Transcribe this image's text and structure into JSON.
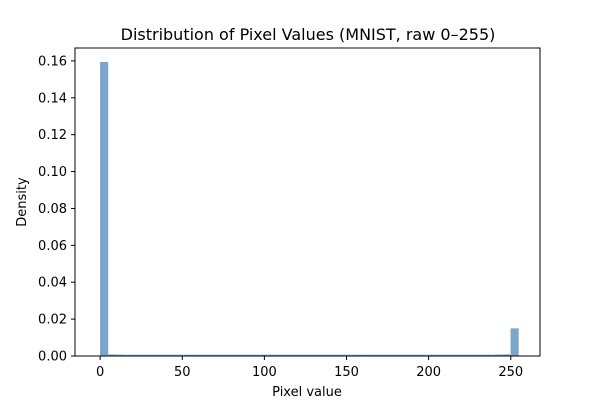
{
  "chart_data": {
    "type": "bar",
    "title": "Distribution of Pixel Values (MNIST, raw 0–255)",
    "xlabel": "Pixel value",
    "ylabel": "Density",
    "xlim": [
      -15.3,
      267.8
    ],
    "ylim": [
      0,
      0.167
    ],
    "grid": false,
    "legend": "none",
    "bar_color": "#7BA5CA",
    "xticks": [
      0,
      50,
      100,
      150,
      200,
      250
    ],
    "yticks": [
      0.0,
      0.02,
      0.04,
      0.06,
      0.08,
      0.1,
      0.12,
      0.14,
      0.16
    ],
    "ytick_labels": [
      "0.00",
      "0.02",
      "0.04",
      "0.06",
      "0.08",
      "0.10",
      "0.12",
      "0.14",
      "0.16"
    ],
    "bin_edges_start": 0,
    "bin_width": 5.1,
    "values": [
      0.1594,
      0.00085,
      0.00075,
      0.0007,
      0.0007,
      0.0007,
      0.0007,
      0.0007,
      0.0007,
      0.0007,
      0.0007,
      0.0007,
      0.0007,
      0.0007,
      0.0007,
      0.0007,
      0.0007,
      0.0007,
      0.0007,
      0.0007,
      0.0007,
      0.0007,
      0.0007,
      0.0007,
      0.0007,
      0.0007,
      0.0007,
      0.0007,
      0.0007,
      0.0007,
      0.0007,
      0.0007,
      0.0007,
      0.0007,
      0.0007,
      0.0007,
      0.0007,
      0.0007,
      0.0007,
      0.0007,
      0.0007,
      0.0007,
      0.0007,
      0.0007,
      0.0007,
      0.0007,
      0.0007,
      0.0008,
      0.0009,
      0.015
    ]
  }
}
